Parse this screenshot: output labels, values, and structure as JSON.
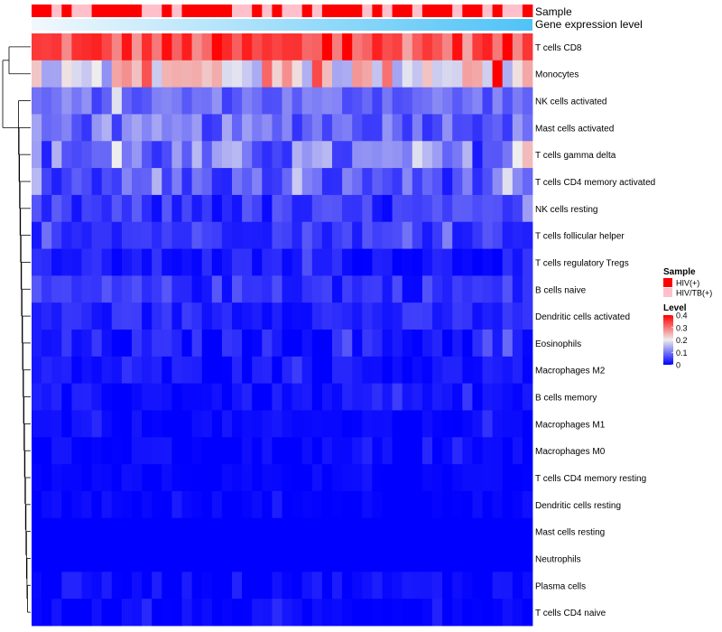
{
  "chart_data": {
    "type": "heatmap",
    "title": "",
    "annotations": {
      "sample_label": "Sample",
      "expression_label": "Gene expression level"
    },
    "legend": {
      "position": "right",
      "sample_title": "Sample",
      "groups": [
        {
          "label": "HIV(+)",
          "color": "#ff0000"
        },
        {
          "label": "HIV/TB(+)",
          "color": "#ffc0cb"
        }
      ],
      "level_title": "Level",
      "level_ticks": [
        {
          "label": "0.4",
          "value": 0.4
        },
        {
          "label": "0.3",
          "value": 0.3
        },
        {
          "label": "0.2",
          "value": 0.2
        },
        {
          "label": "0.1",
          "value": 0.1
        },
        {
          "label": "0",
          "value": 0
        }
      ],
      "color_scale": {
        "low": "#0000ff",
        "mid": "#eeeeee",
        "high": "#ff0000",
        "min": 0,
        "mid_value": 0.2,
        "max": 0.4
      }
    },
    "sample_groups": [
      "HIV(+)",
      "HIV(+)",
      "HIV/TB(+)",
      "HIV(+)",
      "HIV/TB(+)",
      "HIV/TB(+)",
      "HIV(+)",
      "HIV(+)",
      "HIV(+)",
      "HIV(+)",
      "HIV(+)",
      "HIV/TB(+)",
      "HIV/TB(+)",
      "HIV(+)",
      "HIV/TB(+)",
      "HIV(+)",
      "HIV(+)",
      "HIV(+)",
      "HIV(+)",
      "HIV(+)",
      "HIV/TB(+)",
      "HIV/TB(+)",
      "HIV(+)",
      "HIV/TB(+)",
      "HIV(+)",
      "HIV/TB(+)",
      "HIV/TB(+)",
      "HIV(+)",
      "HIV/TB(+)",
      "HIV(+)",
      "HIV(+)",
      "HIV(+)",
      "HIV(+)",
      "HIV/TB(+)",
      "HIV(+)",
      "HIV/TB(+)",
      "HIV(+)",
      "HIV(+)",
      "HIV/TB(+)",
      "HIV(+)",
      "HIV(+)",
      "HIV(+)",
      "HIV/TB(+)",
      "HIV(+)",
      "HIV(+)",
      "HIV/TB(+)",
      "HIV(+)",
      "HIV/TB(+)",
      "HIV/TB(+)",
      "HIV(+)"
    ],
    "rows": [
      "T cells CD8",
      "Monocytes",
      "NK cells activated",
      "Mast cells activated",
      "T cells gamma delta",
      "T cells CD4 memory activated",
      "NK cells resting",
      "T cells follicular helper",
      "T cells regulatory  Tregs",
      "B cells naive",
      "Dendritic cells activated",
      "Eosinophils",
      "Macrophages M2",
      "B cells memory",
      "Macrophages M1",
      "Macrophages M0",
      "T cells CD4 memory resting",
      "Dendritic cells resting",
      "Mast cells resting",
      "Neutrophils",
      "Plasma cells",
      "T cells CD4 naive"
    ],
    "row_base": [
      0.33,
      0.22,
      0.09,
      0.09,
      0.09,
      0.07,
      0.04,
      0.05,
      0.02,
      0.04,
      0.03,
      0.02,
      0.015,
      0.01,
      0.005,
      0.005,
      0.002,
      0.002,
      0.0,
      0.0,
      0.01,
      0.005
    ],
    "row_spread": [
      0.07,
      0.1,
      0.04,
      0.05,
      0.07,
      0.05,
      0.04,
      0.03,
      0.025,
      0.035,
      0.025,
      0.03,
      0.02,
      0.02,
      0.015,
      0.015,
      0.01,
      0.012,
      0.0,
      0.0,
      0.02,
      0.015
    ],
    "n_columns": 50,
    "dendrogram": true
  }
}
